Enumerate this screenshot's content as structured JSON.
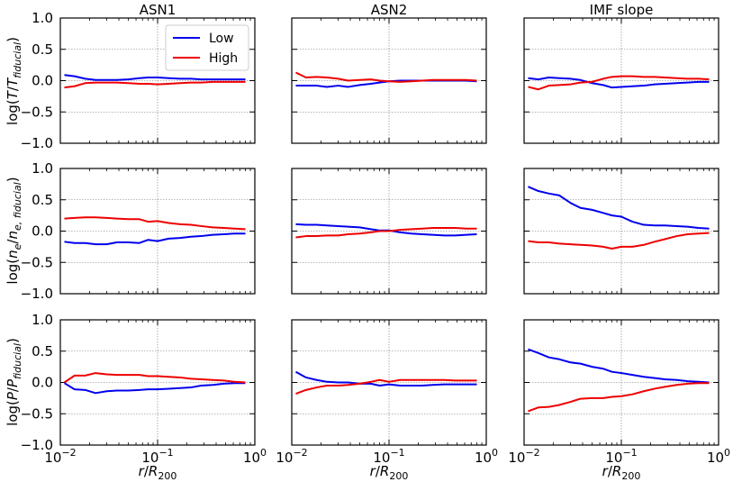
{
  "chart_data": {
    "type": "line",
    "columns": [
      "ASN1",
      "ASN2",
      "IMF slope"
    ],
    "row_ylabels": [
      [
        "log(",
        "T",
        "/",
        "T",
        "fiducial",
        ")"
      ],
      [
        "log(",
        "n",
        "e",
        "/",
        "n",
        "e, fiducial",
        ")"
      ],
      [
        "log(",
        "P",
        "/",
        "P",
        "fiducial",
        ")"
      ]
    ],
    "xlabel": "r/R200",
    "xlabel_parts": {
      "r": "r",
      "slash": "/",
      "R": "R",
      "sub": "200"
    },
    "xscale": "log",
    "xlim": [
      0.01,
      1.0
    ],
    "ylim": [
      -1.0,
      1.0
    ],
    "xticks": [
      {
        "value": 0.01,
        "base": "10",
        "exp": "−2"
      },
      {
        "value": 0.1,
        "base": "10",
        "exp": "−1"
      },
      {
        "value": 1.0,
        "base": "10",
        "exp": "0"
      }
    ],
    "yticks": [
      {
        "value": 1.0,
        "label": "1.0"
      },
      {
        "value": 0.5,
        "label": "0.5"
      },
      {
        "value": 0.0,
        "label": "0.0"
      },
      {
        "value": -0.5,
        "label": "−0.5"
      },
      {
        "value": -1.0,
        "label": "−1.0"
      }
    ],
    "legend": {
      "location": "top-right",
      "panel": "ASN1 / temperature",
      "entries": [
        {
          "name": "Low",
          "color": "#0000ee"
        },
        {
          "name": "High",
          "color": "#ee0000"
        }
      ]
    },
    "grid": true,
    "x": [
      0.011,
      0.014,
      0.018,
      0.023,
      0.03,
      0.038,
      0.05,
      0.065,
      0.08,
      0.1,
      0.13,
      0.17,
      0.22,
      0.28,
      0.37,
      0.48,
      0.62,
      0.8
    ],
    "panels": [
      {
        "column": "ASN1",
        "quantity": "T",
        "series": [
          {
            "name": "Low",
            "color": "#0000ee",
            "values": [
              0.09,
              0.07,
              0.03,
              0.01,
              0.01,
              0.01,
              0.02,
              0.04,
              0.05,
              0.05,
              0.04,
              0.03,
              0.03,
              0.02,
              0.02,
              0.02,
              0.02,
              0.02
            ]
          },
          {
            "name": "High",
            "color": "#ee0000",
            "values": [
              -0.11,
              -0.09,
              -0.04,
              -0.03,
              -0.03,
              -0.03,
              -0.04,
              -0.05,
              -0.05,
              -0.06,
              -0.05,
              -0.04,
              -0.03,
              -0.03,
              -0.02,
              -0.02,
              -0.02,
              -0.02
            ]
          }
        ]
      },
      {
        "column": "ASN2",
        "quantity": "T",
        "series": [
          {
            "name": "Low",
            "color": "#0000ee",
            "values": [
              -0.08,
              -0.08,
              -0.08,
              -0.1,
              -0.08,
              -0.1,
              -0.07,
              -0.05,
              -0.03,
              -0.01,
              0.0,
              0.0,
              0.0,
              0.0,
              0.0,
              0.0,
              0.0,
              -0.01
            ]
          },
          {
            "name": "High",
            "color": "#ee0000",
            "values": [
              0.13,
              0.05,
              0.06,
              0.05,
              0.03,
              0.0,
              0.01,
              0.02,
              0.0,
              -0.01,
              -0.02,
              -0.01,
              0.0,
              0.01,
              0.01,
              0.01,
              0.01,
              0.0
            ]
          }
        ]
      },
      {
        "column": "IMF slope",
        "quantity": "T",
        "series": [
          {
            "name": "Low",
            "color": "#0000ee",
            "values": [
              0.04,
              0.02,
              0.05,
              0.04,
              0.03,
              0.01,
              -0.04,
              -0.07,
              -0.11,
              -0.1,
              -0.09,
              -0.08,
              -0.06,
              -0.05,
              -0.04,
              -0.03,
              -0.02,
              -0.02
            ]
          },
          {
            "name": "High",
            "color": "#ee0000",
            "values": [
              -0.1,
              -0.14,
              -0.08,
              -0.07,
              -0.06,
              -0.03,
              -0.02,
              0.03,
              0.06,
              0.07,
              0.07,
              0.06,
              0.06,
              0.05,
              0.04,
              0.03,
              0.03,
              0.02
            ]
          }
        ]
      },
      {
        "column": "ASN1",
        "quantity": "ne",
        "series": [
          {
            "name": "Low",
            "color": "#0000ee",
            "values": [
              -0.17,
              -0.19,
              -0.19,
              -0.21,
              -0.21,
              -0.18,
              -0.18,
              -0.19,
              -0.14,
              -0.16,
              -0.12,
              -0.11,
              -0.09,
              -0.08,
              -0.06,
              -0.05,
              -0.04,
              -0.04
            ]
          },
          {
            "name": "High",
            "color": "#ee0000",
            "values": [
              0.2,
              0.21,
              0.22,
              0.22,
              0.21,
              0.2,
              0.19,
              0.19,
              0.15,
              0.16,
              0.13,
              0.11,
              0.1,
              0.08,
              0.06,
              0.05,
              0.04,
              0.03
            ]
          }
        ]
      },
      {
        "column": "ASN2",
        "quantity": "ne",
        "series": [
          {
            "name": "Low",
            "color": "#0000ee",
            "values": [
              0.11,
              0.1,
              0.1,
              0.09,
              0.08,
              0.07,
              0.06,
              0.03,
              0.01,
              0.01,
              -0.02,
              -0.04,
              -0.05,
              -0.06,
              -0.07,
              -0.07,
              -0.06,
              -0.05
            ]
          },
          {
            "name": "High",
            "color": "#ee0000",
            "values": [
              -0.1,
              -0.08,
              -0.08,
              -0.07,
              -0.07,
              -0.05,
              -0.04,
              -0.02,
              0.0,
              0.0,
              0.02,
              0.03,
              0.04,
              0.05,
              0.05,
              0.05,
              0.04,
              0.04
            ]
          }
        ]
      },
      {
        "column": "IMF slope",
        "quantity": "ne",
        "series": [
          {
            "name": "Low",
            "color": "#0000ee",
            "values": [
              0.71,
              0.64,
              0.6,
              0.57,
              0.45,
              0.37,
              0.34,
              0.29,
              0.25,
              0.23,
              0.15,
              0.1,
              0.09,
              0.09,
              0.08,
              0.07,
              0.05,
              0.04
            ]
          },
          {
            "name": "High",
            "color": "#ee0000",
            "values": [
              -0.16,
              -0.18,
              -0.18,
              -0.2,
              -0.21,
              -0.22,
              -0.23,
              -0.25,
              -0.28,
              -0.25,
              -0.25,
              -0.22,
              -0.17,
              -0.13,
              -0.08,
              -0.05,
              -0.04,
              -0.03
            ]
          }
        ]
      },
      {
        "column": "ASN1",
        "quantity": "P",
        "series": [
          {
            "name": "Low",
            "color": "#0000ee",
            "values": [
              -0.01,
              -0.11,
              -0.12,
              -0.17,
              -0.14,
              -0.13,
              -0.13,
              -0.12,
              -0.11,
              -0.11,
              -0.1,
              -0.09,
              -0.08,
              -0.05,
              -0.04,
              -0.02,
              -0.01,
              -0.01
            ]
          },
          {
            "name": "High",
            "color": "#ee0000",
            "values": [
              0.0,
              0.11,
              0.11,
              0.15,
              0.13,
              0.12,
              0.12,
              0.12,
              0.1,
              0.1,
              0.09,
              0.08,
              0.06,
              0.05,
              0.04,
              0.03,
              0.01,
              0.0
            ]
          }
        ]
      },
      {
        "column": "ASN2",
        "quantity": "P",
        "series": [
          {
            "name": "Low",
            "color": "#0000ee",
            "values": [
              0.17,
              0.08,
              0.04,
              0.01,
              0.0,
              0.0,
              -0.02,
              -0.02,
              -0.05,
              -0.03,
              -0.05,
              -0.05,
              -0.05,
              -0.04,
              -0.03,
              -0.03,
              -0.03,
              -0.03
            ]
          },
          {
            "name": "High",
            "color": "#ee0000",
            "values": [
              -0.18,
              -0.12,
              -0.08,
              -0.05,
              -0.05,
              -0.04,
              -0.02,
              0.01,
              0.04,
              0.01,
              0.04,
              0.04,
              0.04,
              0.04,
              0.04,
              0.03,
              0.03,
              0.03
            ]
          }
        ]
      },
      {
        "column": "IMF slope",
        "quantity": "P",
        "series": [
          {
            "name": "Low",
            "color": "#0000ee",
            "values": [
              0.53,
              0.47,
              0.4,
              0.37,
              0.32,
              0.3,
              0.25,
              0.22,
              0.17,
              0.15,
              0.12,
              0.09,
              0.07,
              0.05,
              0.04,
              0.02,
              0.01,
              0.0
            ]
          },
          {
            "name": "High",
            "color": "#ee0000",
            "values": [
              -0.46,
              -0.4,
              -0.39,
              -0.36,
              -0.31,
              -0.26,
              -0.25,
              -0.25,
              -0.23,
              -0.22,
              -0.19,
              -0.14,
              -0.1,
              -0.07,
              -0.04,
              -0.02,
              -0.01,
              -0.01
            ]
          }
        ]
      }
    ]
  }
}
